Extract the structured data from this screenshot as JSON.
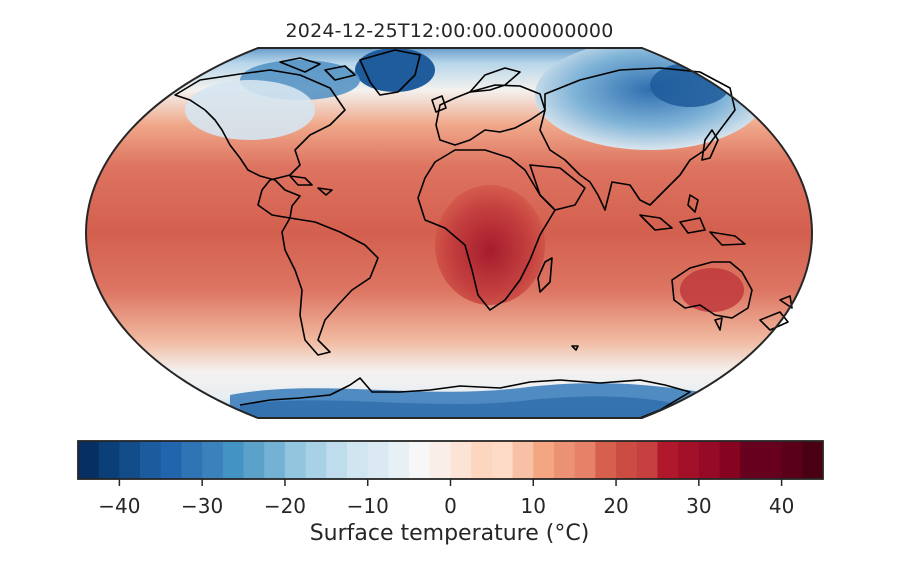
{
  "title": "2024-12-25T12:00:00.000000000",
  "colorbar": {
    "label": "Surface temperature (°C)",
    "vmin": -45,
    "vmax": 45,
    "levels": 36,
    "ticks": [
      -40,
      -30,
      -20,
      -10,
      0,
      10,
      20,
      30,
      40
    ],
    "tick_labels": [
      "−40",
      "−30",
      "−20",
      "−10",
      "0",
      "10",
      "20",
      "30",
      "40"
    ],
    "cmap": "RdBu_r",
    "colors": [
      "#053061",
      "#0b3f78",
      "#134d89",
      "#1c5c9e",
      "#2166ac",
      "#2f74b4",
      "#3b81bc",
      "#4393c3",
      "#5ba2cb",
      "#74b2d5",
      "#92c5de",
      "#a9d1e5",
      "#bfdced",
      "#d1e5f0",
      "#dbeaf2",
      "#e7f0f4",
      "#f7f7f7",
      "#f9efe8",
      "#fbe3d5",
      "#fdd6bf",
      "#fddbc7",
      "#f8c0a4",
      "#f4a582",
      "#ec9274",
      "#e58268",
      "#d6604d",
      "#cc4c44",
      "#c5403f",
      "#b2182b",
      "#a31128",
      "#950a26",
      "#86041f",
      "#67001f",
      "#67001f",
      "#5a0018",
      "#4a0013"
    ]
  },
  "map": {
    "projection": "Robinson",
    "coastlines": true
  }
}
